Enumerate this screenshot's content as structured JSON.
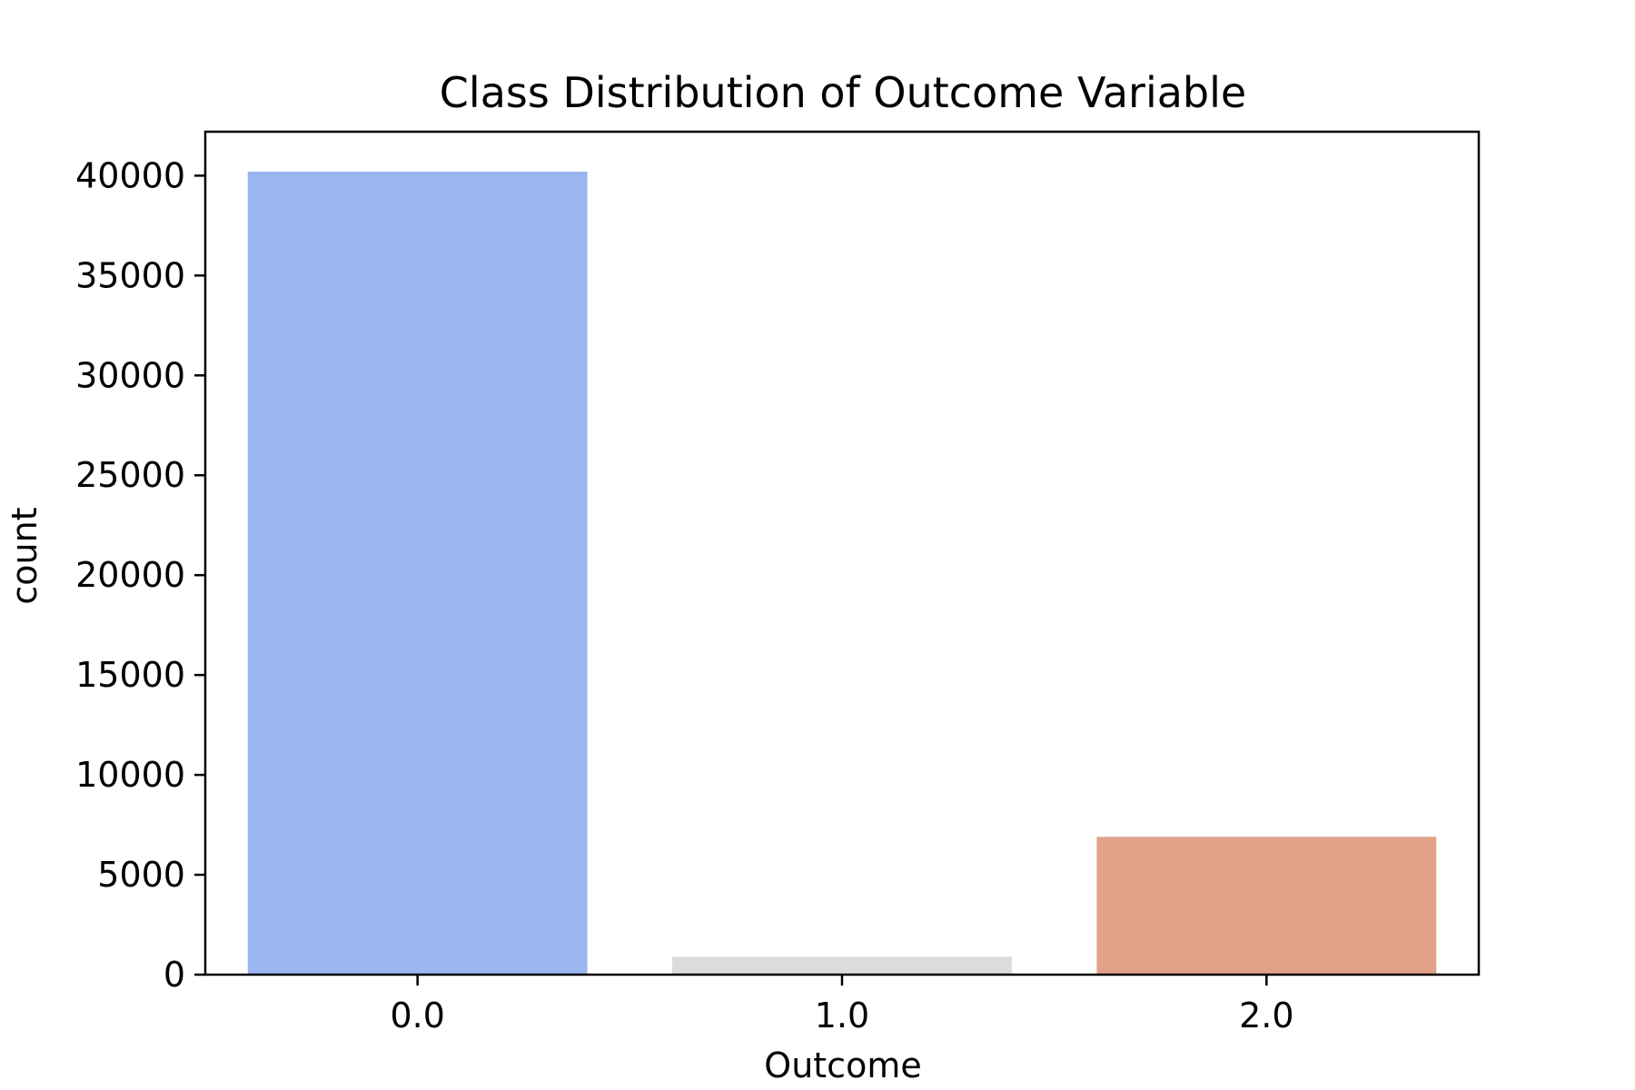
{
  "chart_data": {
    "type": "bar",
    "title": "Class Distribution of Outcome Variable",
    "xlabel": "Outcome",
    "ylabel": "count",
    "categories": [
      "0.0",
      "1.0",
      "2.0"
    ],
    "values": [
      40200,
      900,
      6900
    ],
    "colors": [
      "#9bb5ee",
      "#dcdcdc",
      "#e4a18a"
    ],
    "ylim": [
      0,
      42200
    ],
    "yticks": [
      0,
      5000,
      10000,
      15000,
      20000,
      25000,
      30000,
      35000,
      40000
    ],
    "grid": false
  }
}
